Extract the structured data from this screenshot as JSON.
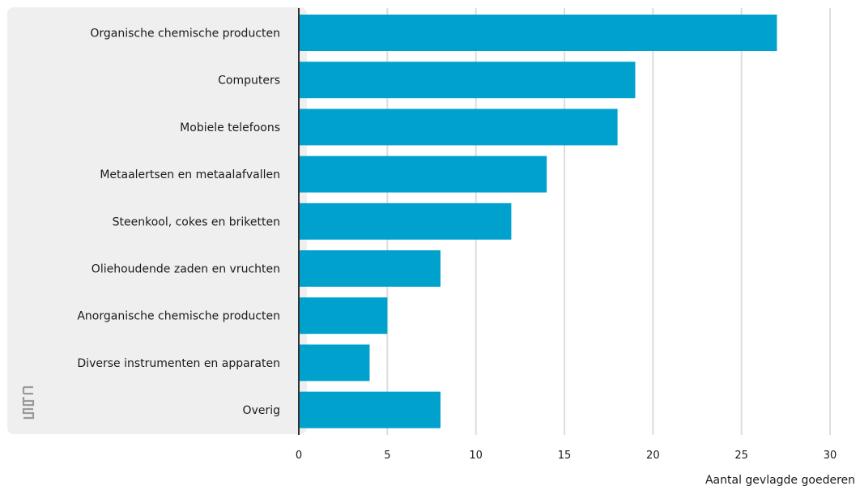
{
  "chart_data": {
    "type": "bar",
    "orientation": "horizontal",
    "categories": [
      "Organische chemische producten",
      "Computers",
      "Mobiele telefoons",
      "Metaalertsen en metaalafvallen",
      "Steenkool, cokes en briketten",
      "Oliehoudende zaden en vruchten",
      "Anorganische chemische producten",
      "Diverse instrumenten en apparaten",
      "Overig"
    ],
    "values": [
      27,
      19,
      18,
      14,
      12,
      8,
      5,
      4,
      8
    ],
    "xlabel": "Aantal gevlagde goederen",
    "xlim": [
      0,
      30
    ],
    "xticks": [
      "0",
      "5",
      "10",
      "15",
      "20",
      "25",
      "30"
    ],
    "grid": true,
    "bar_color": "#00a1cd",
    "label_panel_color": "#efefef"
  },
  "logo": {
    "text": "cbs"
  }
}
